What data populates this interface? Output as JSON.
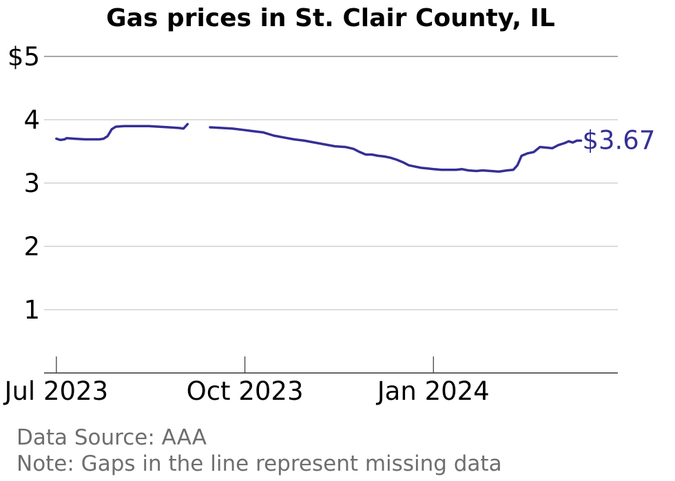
{
  "chart_data": {
    "type": "line",
    "title": "Gas prices in St. Clair County, IL",
    "xlabel": "",
    "ylabel": "",
    "x_axis": {
      "start": "2023-06-25",
      "end": "2024-03-31",
      "ticks": [
        {
          "date": "2023-07-01",
          "label": "Jul 2023"
        },
        {
          "date": "2023-10-01",
          "label": "Oct 2023"
        },
        {
          "date": "2024-01-01",
          "label": "Jan 2024"
        }
      ]
    },
    "y_axis": {
      "range": [
        0,
        5
      ],
      "ticks": [
        {
          "value": 1,
          "label": "1"
        },
        {
          "value": 2,
          "label": "2"
        },
        {
          "value": 3,
          "label": "3"
        },
        {
          "value": 4,
          "label": "4"
        },
        {
          "value": 5,
          "label": "$5"
        }
      ]
    },
    "grid": "horizontal",
    "line_color": "#352f96",
    "end_label": "$3.67",
    "series": [
      {
        "segments": [
          [
            [
              "2023-07-01",
              3.7
            ],
            [
              "2023-07-03",
              3.68
            ],
            [
              "2023-07-05",
              3.69
            ],
            [
              "2023-07-06",
              3.71
            ],
            [
              "2023-07-10",
              3.7
            ],
            [
              "2023-07-15",
              3.69
            ],
            [
              "2023-07-18",
              3.69
            ],
            [
              "2023-07-22",
              3.69
            ],
            [
              "2023-07-24",
              3.7
            ],
            [
              "2023-07-26",
              3.74
            ],
            [
              "2023-07-28",
              3.85
            ],
            [
              "2023-07-30",
              3.89
            ],
            [
              "2023-08-03",
              3.9
            ],
            [
              "2023-08-06",
              3.9
            ],
            [
              "2023-08-10",
              3.9
            ],
            [
              "2023-08-15",
              3.9
            ],
            [
              "2023-08-20",
              3.89
            ],
            [
              "2023-08-25",
              3.88
            ],
            [
              "2023-08-30",
              3.87
            ],
            [
              "2023-09-01",
              3.86
            ],
            [
              "2023-09-03",
              3.93
            ]
          ],
          [
            [
              "2023-09-14",
              3.88
            ],
            [
              "2023-09-20",
              3.87
            ],
            [
              "2023-09-25",
              3.86
            ],
            [
              "2023-09-30",
              3.84
            ],
            [
              "2023-10-05",
              3.82
            ],
            [
              "2023-10-10",
              3.8
            ],
            [
              "2023-10-15",
              3.75
            ],
            [
              "2023-10-20",
              3.72
            ],
            [
              "2023-10-25",
              3.69
            ],
            [
              "2023-10-30",
              3.67
            ],
            [
              "2023-11-04",
              3.64
            ],
            [
              "2023-11-09",
              3.61
            ],
            [
              "2023-11-14",
              3.58
            ],
            [
              "2023-11-19",
              3.57
            ],
            [
              "2023-11-23",
              3.54
            ],
            [
              "2023-11-26",
              3.49
            ],
            [
              "2023-11-29",
              3.45
            ],
            [
              "2023-12-02",
              3.45
            ],
            [
              "2023-12-05",
              3.43
            ],
            [
              "2023-12-08",
              3.42
            ],
            [
              "2023-12-11",
              3.4
            ],
            [
              "2023-12-14",
              3.37
            ],
            [
              "2023-12-17",
              3.33
            ],
            [
              "2023-12-20",
              3.28
            ],
            [
              "2023-12-23",
              3.26
            ],
            [
              "2023-12-26",
              3.24
            ],
            [
              "2023-12-29",
              3.23
            ],
            [
              "2024-01-01",
              3.22
            ],
            [
              "2024-01-05",
              3.21
            ],
            [
              "2024-01-09",
              3.21
            ],
            [
              "2024-01-12",
              3.21
            ],
            [
              "2024-01-15",
              3.22
            ],
            [
              "2024-01-18",
              3.2
            ],
            [
              "2024-01-22",
              3.19
            ],
            [
              "2024-01-25",
              3.2
            ],
            [
              "2024-01-29",
              3.19
            ],
            [
              "2024-02-02",
              3.18
            ],
            [
              "2024-02-06",
              3.2
            ],
            [
              "2024-02-09",
              3.21
            ],
            [
              "2024-02-11",
              3.28
            ],
            [
              "2024-02-13",
              3.43
            ],
            [
              "2024-02-16",
              3.47
            ],
            [
              "2024-02-19",
              3.49
            ],
            [
              "2024-02-22",
              3.57
            ],
            [
              "2024-02-25",
              3.56
            ],
            [
              "2024-02-28",
              3.55
            ],
            [
              "2024-03-02",
              3.6
            ],
            [
              "2024-03-05",
              3.63
            ],
            [
              "2024-03-07",
              3.66
            ],
            [
              "2024-03-09",
              3.64
            ],
            [
              "2024-03-11",
              3.67
            ],
            [
              "2024-03-13",
              3.67
            ]
          ]
        ]
      }
    ],
    "footnotes": [
      "Data Source: AAA",
      "Note: Gaps in the line represent missing data"
    ]
  }
}
